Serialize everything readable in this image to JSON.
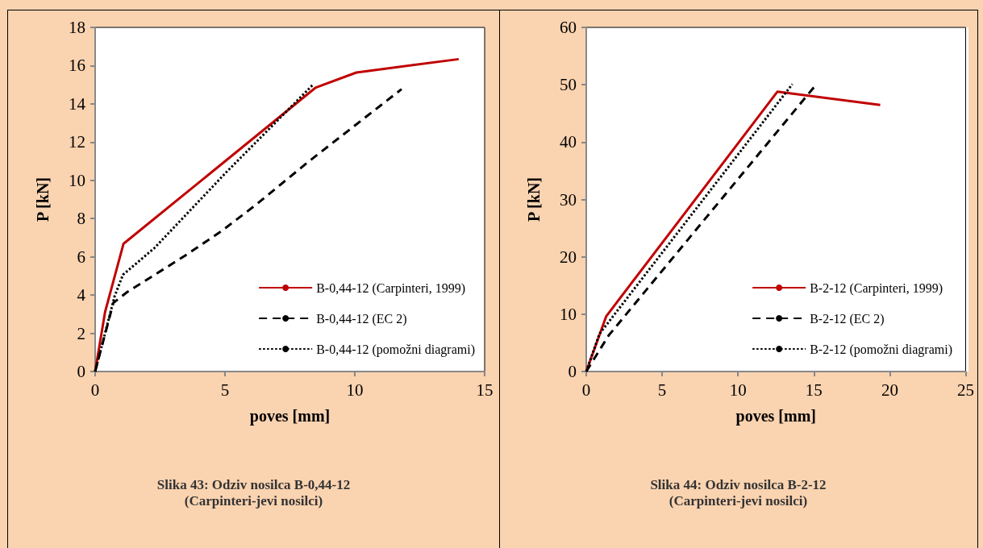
{
  "chart_data": [
    {
      "type": "line",
      "xlabel": "poves [mm]",
      "ylabel": "P [kN]",
      "xlim": [
        0,
        15
      ],
      "xticks": [
        0,
        5,
        10,
        15
      ],
      "ylim": [
        0,
        18
      ],
      "yticks": [
        0,
        2,
        4,
        6,
        8,
        10,
        12,
        14,
        16,
        18
      ],
      "grid": false,
      "legend": "bottom right",
      "marker": "none",
      "annotations": [
        "Slika 43: Odziv nosilca B-0,44-12",
        "(Carpinteri-jevi nosilci)"
      ],
      "series": [
        {
          "name": "B-0,44-12 (Carpinteri, 1999)",
          "color": "#c00000",
          "line_style": "solid",
          "x": [
            0,
            0.38,
            1.09,
            8.48,
            10.06,
            14.0
          ],
          "values": [
            0,
            3.1,
            6.68,
            14.84,
            15.64,
            16.34
          ]
        },
        {
          "name": "B-0,44-12 (EC 2)",
          "color": "#000000",
          "line_style": "dashed",
          "x": [
            0,
            0.7,
            1.23,
            3.45,
            4.83,
            6.2,
            8.21,
            11.8
          ],
          "values": [
            0,
            3.59,
            4.15,
            6.05,
            7.31,
            8.73,
            10.97,
            14.77
          ]
        },
        {
          "name": "B-0,44-12 (pomožni diagrami)",
          "color": "#000000",
          "line_style": "dotted",
          "x": [
            0,
            0.75,
            1.07,
            2.29,
            5.04,
            8.37
          ],
          "values": [
            0,
            3.94,
            5.06,
            6.47,
            10.41,
            14.98
          ]
        }
      ]
    },
    {
      "type": "line",
      "xlabel": "poves [mm]",
      "ylabel": "P [kN]",
      "xlim": [
        0,
        25
      ],
      "xticks": [
        0,
        5,
        10,
        15,
        20,
        25
      ],
      "ylim": [
        0,
        60
      ],
      "yticks": [
        0,
        10,
        20,
        30,
        40,
        50,
        60
      ],
      "grid": false,
      "legend": "bottom right",
      "marker": "none",
      "annotations": [
        "Slika 44: Odziv nosilca B-2-12",
        "(Carpinteri-jevi nosilci)"
      ],
      "series": [
        {
          "name": "B-2-12 (Carpinteri, 1999)",
          "color": "#c00000",
          "line_style": "solid",
          "x": [
            0,
            1.31,
            12.6,
            19.37
          ],
          "values": [
            0,
            9.6,
            48.8,
            46.46
          ]
        },
        {
          "name": "B-2-12 (EC 2)",
          "color": "#000000",
          "line_style": "dashed",
          "x": [
            0,
            1.48,
            15.17
          ],
          "values": [
            0,
            6.3,
            50.1
          ]
        },
        {
          "name": "B-2-12 (pomožni diagrami)",
          "color": "#000000",
          "line_style": "dotted",
          "x": [
            0,
            0.87,
            13.58
          ],
          "values": [
            0,
            6.56,
            50.1
          ]
        }
      ]
    }
  ]
}
